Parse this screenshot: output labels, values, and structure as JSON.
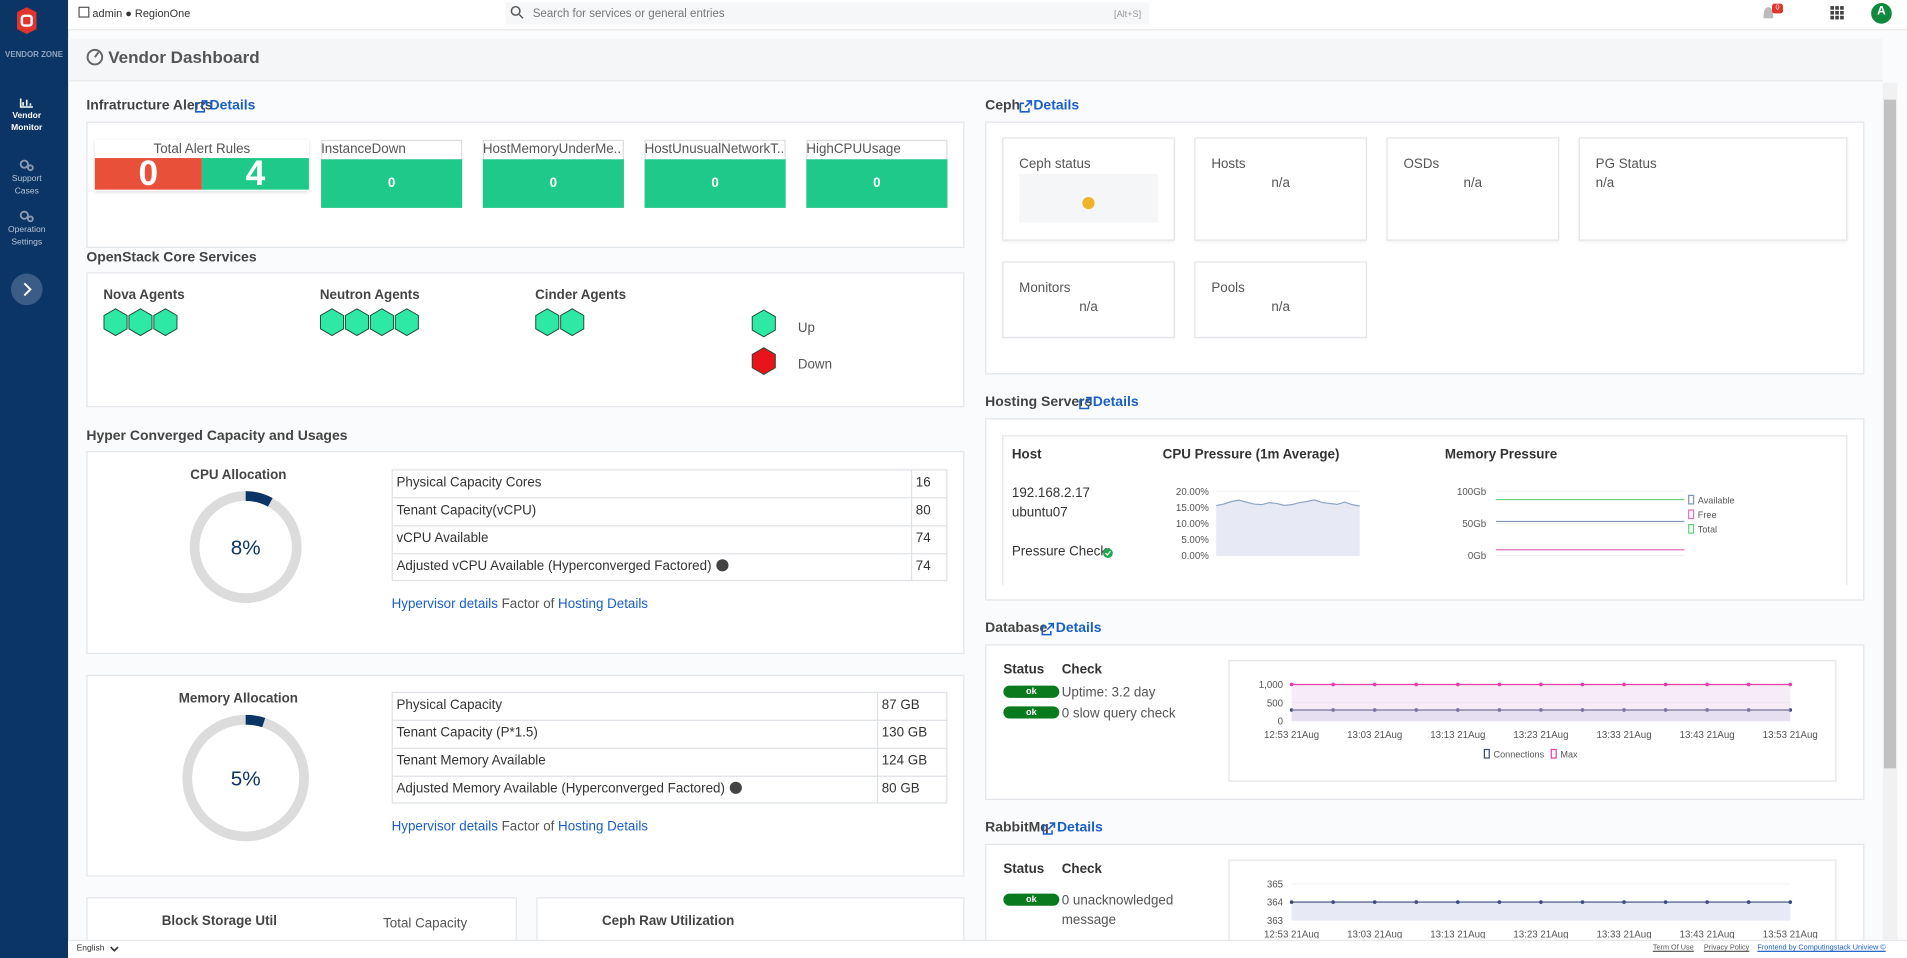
{
  "header": {
    "user": "admin ● RegionOne",
    "search_placeholder": "Search for services or general entries",
    "search_shortcut": "[Alt+S]",
    "notifications": "0",
    "avatar": "A"
  },
  "sidebar": {
    "brand": "VENDOR ZONE",
    "items": [
      "Vendor Monitor",
      "Support Cases",
      "Operation Settings"
    ]
  },
  "page_title": "Vendor Dashboard",
  "infra_alerts": {
    "title": "Infratructure Alerts",
    "details": "Details",
    "total_label": "Total Alert Rules",
    "total_firing": "0",
    "total_ok": "4",
    "alerts": [
      {
        "name": "InstanceDown",
        "count": "0"
      },
      {
        "name": "HostMemoryUnderMe...",
        "count": "0"
      },
      {
        "name": "HostUnusualNetworkT...",
        "count": "0"
      },
      {
        "name": "HighCPUUsage",
        "count": "0"
      }
    ]
  },
  "openstack": {
    "title": "OpenStack Core Services",
    "groups": [
      {
        "name": "Nova Agents",
        "up": 3
      },
      {
        "name": "Neutron Agents",
        "up": 4
      },
      {
        "name": "Cinder Agents",
        "up": 2
      }
    ],
    "legend": [
      "Up",
      "Down"
    ]
  },
  "capacity": {
    "title": "Hyper Converged Capacity and Usages",
    "cpu": {
      "title": "CPU Allocation",
      "percent": 8,
      "percent_label": "8%",
      "rows": [
        {
          "label": "Physical Capacity Cores",
          "value": "16"
        },
        {
          "label": "Tenant Capacity(vCPU)",
          "value": "80"
        },
        {
          "label": "vCPU Available",
          "value": "74"
        },
        {
          "label": "Adjusted vCPU Available (Hyperconverged Factored)",
          "value": "74",
          "info": true
        }
      ],
      "links": [
        "Hypervisor details",
        "Factor of",
        "Hosting Details"
      ]
    },
    "memory": {
      "title": "Memory Allocation",
      "percent": 5,
      "percent_label": "5%",
      "rows": [
        {
          "label": "Physical Capacity",
          "value": "87 GB"
        },
        {
          "label": "Tenant Capacity (P*1.5)",
          "value": "130 GB"
        },
        {
          "label": "Tenant Memory Available",
          "value": "124 GB"
        },
        {
          "label": "Adjusted Memory Available (Hyperconverged Factored)",
          "value": "80 GB",
          "info": true
        }
      ],
      "links": [
        "Hypervisor details",
        "Factor of",
        "Hosting Details"
      ]
    },
    "block_storage": "Block Storage Util",
    "total_capacity": "Total Capacity",
    "ceph_raw": "Ceph Raw Utilization"
  },
  "ceph": {
    "title": "Ceph",
    "details": "Details",
    "tiles": [
      {
        "label": "Ceph status"
      },
      {
        "label": "Hosts",
        "value": "n/a"
      },
      {
        "label": "OSDs",
        "value": "n/a"
      },
      {
        "label": "PG Status",
        "value": "n/a"
      },
      {
        "label": "Monitors",
        "value": "n/a"
      },
      {
        "label": "Pools",
        "value": "n/a"
      }
    ]
  },
  "hosting": {
    "title": "Hosting Servers",
    "details": "Details",
    "headers": [
      "Host",
      "CPU Pressure (1m Average)",
      "Memory Pressure"
    ],
    "host_ip": "192.168.2.17",
    "host_name": "ubuntu07",
    "pressure_check": "Pressure Check:",
    "cpu_chart": {
      "type": "line",
      "ylim": [
        0,
        20
      ],
      "yticks": [
        {
          "value": 0,
          "label": "0.00%"
        },
        {
          "value": 5,
          "label": "5.00%"
        },
        {
          "value": 10,
          "label": "10.00%"
        },
        {
          "value": 15,
          "label": "15.00%"
        },
        {
          "value": 20,
          "label": "20.00%"
        }
      ],
      "area": true,
      "series": [
        {
          "color": "#8fa6c4",
          "values": [
            15.5,
            16,
            16.8,
            17.2,
            16.6,
            16,
            15.8,
            16.4,
            16.2,
            15.6,
            15.8,
            16.4,
            16.8,
            17.3,
            16.5,
            16.2,
            15.9,
            16.6,
            15.8,
            15.4
          ]
        }
      ]
    },
    "mem_chart": {
      "type": "line",
      "ylim": [
        0,
        100
      ],
      "yticks": [
        {
          "value": 0,
          "label": "0Gb"
        },
        {
          "value": 50,
          "label": "50Gb"
        },
        {
          "value": 100,
          "label": "100Gb"
        }
      ],
      "series": [
        {
          "name": "Available",
          "color": "#7f93b8",
          "values": [
            53,
            53,
            53,
            53,
            53,
            53,
            53,
            53
          ]
        },
        {
          "name": "Free",
          "color": "#e070b8",
          "values": [
            9,
            9,
            9,
            9,
            9,
            9,
            9,
            9
          ]
        },
        {
          "name": "Total",
          "color": "#66d17a",
          "values": [
            87,
            87,
            87,
            87,
            87,
            87,
            87,
            87
          ]
        }
      ]
    }
  },
  "database": {
    "title": "Database",
    "details": "Details",
    "headers": [
      "Status",
      "Check"
    ],
    "rows": [
      {
        "status": "ok",
        "check": "Uptime: 3.2 day"
      },
      {
        "status": "ok",
        "check": "0 slow query check"
      }
    ],
    "chart": {
      "type": "line",
      "ylim": [
        0,
        1000
      ],
      "yticks": [
        0,
        500,
        {
          "value": 1000,
          "label": "1,000"
        }
      ],
      "area": true,
      "markers": true,
      "categories": [
        "12:53 21Aug",
        null,
        "13:03 21Aug",
        null,
        "13:13 21Aug",
        null,
        "13:23 21Aug",
        null,
        "13:33 21Aug",
        null,
        "13:43 21Aug",
        null,
        "13:53 21Aug"
      ],
      "series": [
        {
          "name": "Connections",
          "color": "#3d4a78",
          "values": [
            300,
            300,
            300,
            300,
            300,
            300,
            300,
            300,
            300,
            300,
            300,
            300,
            300
          ]
        },
        {
          "name": "Max",
          "color": "#e040a8",
          "values": [
            1000,
            1000,
            1000,
            1000,
            1000,
            1000,
            1000,
            1000,
            1000,
            1000,
            1000,
            1000,
            1000
          ]
        }
      ]
    }
  },
  "rabbitmq": {
    "title": "RabbitMq",
    "details": "Details",
    "headers": [
      "Status",
      "Check"
    ],
    "rows": [
      {
        "status": "ok",
        "check": "0 unacknowledged message"
      }
    ],
    "chart": {
      "type": "line",
      "ylim": [
        363,
        365
      ],
      "yticks": [
        363,
        364,
        365
      ],
      "area": true,
      "markers": true,
      "categories": [
        "12:53 21Aug",
        null,
        "13:03 21Aug",
        null,
        "13:13 21Aug",
        null,
        "13:23 21Aug",
        null,
        "13:33 21Aug",
        null,
        "13:43 21Aug",
        null,
        "13:53 21Aug"
      ],
      "series": [
        {
          "color": "#3d4a78",
          "values": [
            364,
            364,
            364,
            364,
            364,
            364,
            364,
            364,
            364,
            364,
            364,
            364,
            364
          ]
        }
      ]
    }
  },
  "footer": {
    "language": "English",
    "links": [
      "Term Of Use",
      "Privacy Policy",
      "Frontend by Computingstack Uniview ©"
    ]
  }
}
